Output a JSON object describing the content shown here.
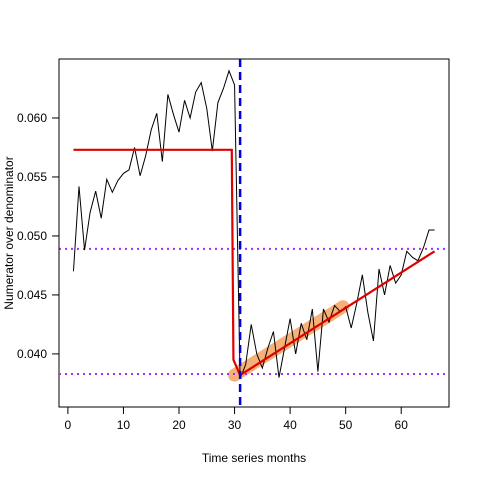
{
  "chart_data": {
    "type": "line",
    "xlabel": "Time series months",
    "ylabel": "Numerator over denominator",
    "xlim": [
      -1.6,
      68.6
    ],
    "ylim": [
      0.0355,
      0.065
    ],
    "x_ticks": [
      0,
      10,
      20,
      30,
      40,
      50,
      60
    ],
    "y_ticks": [
      0.04,
      0.045,
      0.05,
      0.055,
      0.06
    ],
    "y_tick_labels": [
      "0.040",
      "0.045",
      "0.050",
      "0.055",
      "0.060"
    ],
    "series": [
      {
        "style": "observed",
        "color": "#000000",
        "x": [
          1,
          2,
          3,
          4,
          5,
          6,
          7,
          8,
          9,
          10,
          11,
          12,
          13,
          14,
          15,
          16,
          17,
          18,
          19,
          20,
          21,
          22,
          23,
          24,
          25,
          26,
          27,
          28,
          29,
          30,
          31,
          32,
          33,
          34,
          35,
          36,
          37,
          38,
          39,
          40,
          41,
          42,
          43,
          44,
          45,
          46,
          47,
          48,
          49,
          50,
          51,
          52,
          53,
          54,
          55,
          56,
          57,
          58,
          59,
          60,
          61,
          62,
          63,
          64,
          65,
          66
        ],
        "y": [
          0.047,
          0.0542,
          0.0488,
          0.052,
          0.0538,
          0.0515,
          0.0548,
          0.0537,
          0.0547,
          0.0553,
          0.0556,
          0.0575,
          0.0551,
          0.0568,
          0.059,
          0.0604,
          0.0563,
          0.062,
          0.0603,
          0.0588,
          0.0615,
          0.06,
          0.0622,
          0.063,
          0.0608,
          0.0572,
          0.0613,
          0.0625,
          0.064,
          0.0628,
          0.0379,
          0.0391,
          0.0425,
          0.04,
          0.0388,
          0.0405,
          0.0419,
          0.038,
          0.0405,
          0.043,
          0.04,
          0.0426,
          0.0412,
          0.0438,
          0.0385,
          0.0438,
          0.0427,
          0.0441,
          0.0436,
          0.044,
          0.0422,
          0.0443,
          0.0467,
          0.0435,
          0.0411,
          0.0472,
          0.045,
          0.0475,
          0.046,
          0.0467,
          0.0487,
          0.0482,
          0.0479,
          0.049,
          0.0505,
          0.0505
        ]
      },
      {
        "style": "fitted",
        "color": "#e00000",
        "x": [
          1,
          29.5,
          29.8,
          31,
          66
        ],
        "y": [
          0.0573,
          0.0573,
          0.0395,
          0.0382,
          0.0487
        ]
      },
      {
        "style": "confidence-band",
        "color": "#f4a460",
        "x": [
          30,
          49.5
        ],
        "y": [
          0.0382,
          0.044
        ]
      }
    ],
    "reference_lines": {
      "vertical": [
        {
          "x": 31,
          "color": "#0000dd",
          "style": "dashed"
        }
      ],
      "horizontal": [
        {
          "y": 0.0489,
          "color": "#9b30ff",
          "style": "dotted"
        },
        {
          "y": 0.0383,
          "color": "#9b30ff",
          "style": "dotted"
        }
      ]
    }
  }
}
